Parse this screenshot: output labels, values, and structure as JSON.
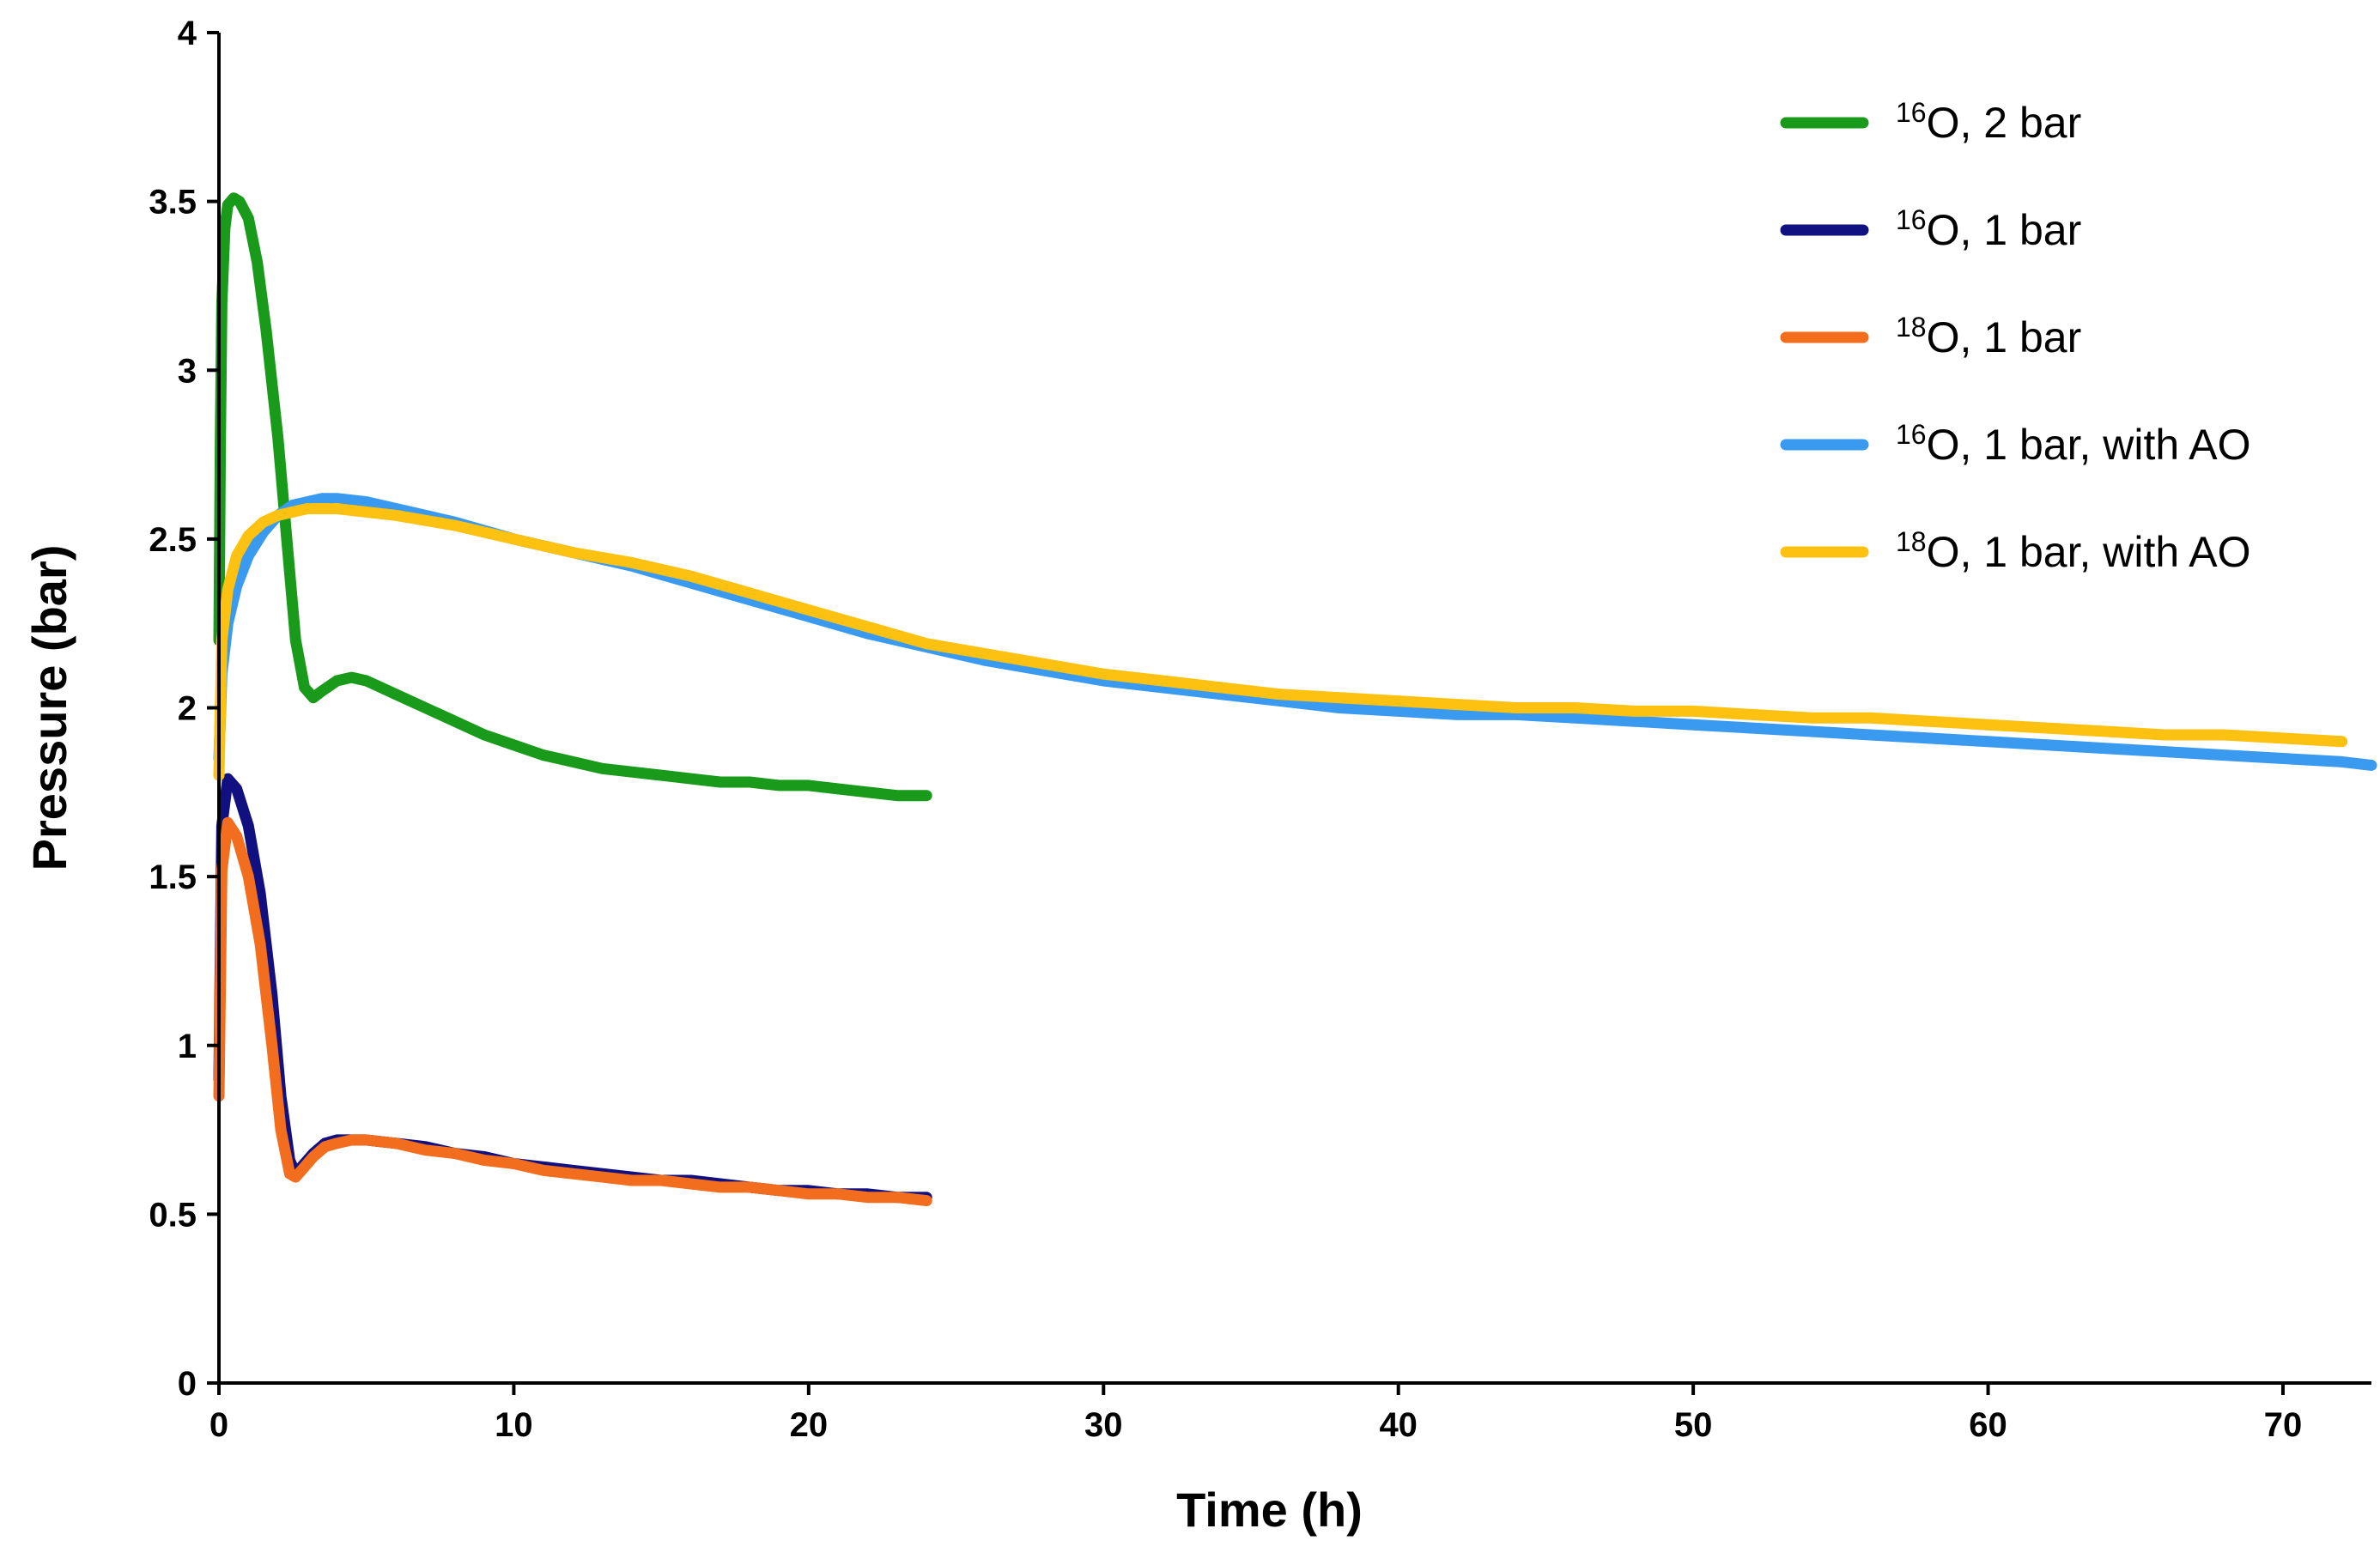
{
  "chart_data": {
    "type": "line",
    "xlabel": "Time (h)",
    "ylabel": "Pressure (bar)",
    "xlim": [
      0,
      73
    ],
    "ylim": [
      0,
      4
    ],
    "xticks": [
      0,
      10,
      20,
      30,
      40,
      50,
      60,
      70
    ],
    "yticks": [
      0,
      0.5,
      1,
      1.5,
      2,
      2.5,
      3,
      3.5,
      4
    ],
    "ytick_labels": [
      "0",
      "0.5",
      "1",
      "1.5",
      "2",
      "2.5",
      "3",
      "3.5",
      "4"
    ],
    "grid": false,
    "legend_position": "top-right",
    "series": [
      {
        "name_sup": "16",
        "name_rest": "O, 2 bar",
        "color": "#1a9a1a",
        "x": [
          0,
          0.05,
          0.1,
          0.2,
          0.3,
          0.5,
          0.7,
          1.0,
          1.3,
          1.6,
          2.0,
          2.3,
          2.6,
          2.9,
          3.2,
          3.5,
          4.0,
          4.5,
          5.0,
          5.5,
          6.0,
          7.0,
          8.0,
          9.0,
          10.0,
          11.0,
          12.0,
          13.0,
          14.0,
          15.0,
          16.0,
          17.0,
          18.0,
          19.0,
          20.0,
          21.0,
          22.0,
          23.0,
          24.0
        ],
        "y": [
          2.2,
          2.8,
          3.2,
          3.42,
          3.49,
          3.51,
          3.5,
          3.45,
          3.32,
          3.12,
          2.8,
          2.5,
          2.2,
          2.06,
          2.03,
          2.05,
          2.08,
          2.09,
          2.08,
          2.06,
          2.04,
          2.0,
          1.96,
          1.92,
          1.89,
          1.86,
          1.84,
          1.82,
          1.81,
          1.8,
          1.79,
          1.78,
          1.78,
          1.77,
          1.77,
          1.76,
          1.75,
          1.74,
          1.74
        ]
      },
      {
        "name_sup": "16",
        "name_rest": "O, 1 bar",
        "color": "#101080",
        "x": [
          0,
          0.1,
          0.3,
          0.6,
          1.0,
          1.4,
          1.8,
          2.1,
          2.4,
          2.6,
          2.8,
          3.2,
          3.6,
          4.0,
          4.5,
          5.0,
          6.0,
          7.0,
          8.0,
          9.0,
          10.0,
          11.0,
          12.0,
          13.0,
          14.0,
          15.0,
          16.0,
          17.0,
          18.0,
          19.0,
          20.0,
          21.0,
          22.0,
          23.0,
          24.0
        ],
        "y": [
          0.9,
          1.65,
          1.79,
          1.76,
          1.65,
          1.45,
          1.15,
          0.85,
          0.66,
          0.62,
          0.64,
          0.68,
          0.71,
          0.72,
          0.72,
          0.72,
          0.71,
          0.7,
          0.68,
          0.67,
          0.65,
          0.64,
          0.63,
          0.62,
          0.61,
          0.6,
          0.6,
          0.59,
          0.58,
          0.57,
          0.57,
          0.56,
          0.56,
          0.55,
          0.55
        ]
      },
      {
        "name_sup": "18",
        "name_rest": "O, 1 bar",
        "color": "#f26d1e",
        "x": [
          0,
          0.1,
          0.3,
          0.6,
          1.0,
          1.4,
          1.8,
          2.1,
          2.4,
          2.6,
          2.8,
          3.2,
          3.6,
          4.0,
          4.5,
          5.0,
          6.0,
          7.0,
          8.0,
          9.0,
          10.0,
          11.0,
          12.0,
          13.0,
          14.0,
          15.0,
          16.0,
          17.0,
          18.0,
          19.0,
          20.0,
          21.0,
          22.0,
          23.0,
          24.0
        ],
        "y": [
          0.85,
          1.52,
          1.66,
          1.62,
          1.5,
          1.3,
          1.0,
          0.75,
          0.62,
          0.61,
          0.63,
          0.67,
          0.7,
          0.71,
          0.72,
          0.72,
          0.71,
          0.69,
          0.68,
          0.66,
          0.65,
          0.63,
          0.62,
          0.61,
          0.6,
          0.6,
          0.59,
          0.58,
          0.58,
          0.57,
          0.56,
          0.56,
          0.55,
          0.55,
          0.54
        ]
      },
      {
        "name_sup": "16",
        "name_rest": "O, 1 bar, with AO",
        "color": "#3a9af0",
        "x": [
          0,
          0.1,
          0.3,
          0.6,
          1.0,
          1.5,
          2.0,
          2.5,
          3.0,
          3.5,
          4.0,
          5.0,
          6.0,
          8.0,
          10.0,
          12.0,
          14.0,
          16.0,
          18.0,
          20.0,
          22.0,
          24.0,
          26.0,
          28.0,
          30.0,
          32.0,
          34.0,
          36.0,
          38.0,
          40.0,
          42.0,
          44.0,
          46.0,
          48.0,
          50.0,
          52.0,
          54.0,
          56.0,
          58.0,
          60.0,
          62.0,
          64.0,
          66.0,
          68.0,
          70.0,
          72.0,
          73.0
        ],
        "y": [
          1.85,
          2.1,
          2.25,
          2.36,
          2.45,
          2.52,
          2.57,
          2.6,
          2.61,
          2.62,
          2.62,
          2.61,
          2.59,
          2.55,
          2.5,
          2.46,
          2.42,
          2.37,
          2.32,
          2.27,
          2.22,
          2.18,
          2.14,
          2.11,
          2.08,
          2.06,
          2.04,
          2.02,
          2.0,
          1.99,
          1.98,
          1.98,
          1.97,
          1.96,
          1.95,
          1.94,
          1.93,
          1.92,
          1.91,
          1.9,
          1.89,
          1.88,
          1.87,
          1.86,
          1.85,
          1.84,
          1.83
        ]
      },
      {
        "name_sup": "18",
        "name_rest": "O, 1 bar, with AO",
        "color": "#fcc111",
        "x": [
          0,
          0.1,
          0.3,
          0.6,
          1.0,
          1.5,
          2.0,
          2.5,
          3.0,
          4.0,
          5.0,
          6.0,
          8.0,
          10.0,
          12.0,
          14.0,
          16.0,
          18.0,
          20.0,
          22.0,
          24.0,
          26.0,
          28.0,
          30.0,
          32.0,
          34.0,
          36.0,
          38.0,
          40.0,
          42.0,
          44.0,
          46.0,
          48.0,
          50.0,
          52.0,
          54.0,
          56.0,
          58.0,
          60.0,
          62.0,
          64.0,
          66.0,
          68.0,
          70.0,
          72.0
        ],
        "y": [
          1.8,
          2.2,
          2.35,
          2.45,
          2.51,
          2.55,
          2.57,
          2.58,
          2.59,
          2.59,
          2.58,
          2.57,
          2.54,
          2.5,
          2.46,
          2.43,
          2.39,
          2.34,
          2.29,
          2.24,
          2.19,
          2.16,
          2.13,
          2.1,
          2.08,
          2.06,
          2.04,
          2.03,
          2.02,
          2.01,
          2.0,
          2.0,
          1.99,
          1.99,
          1.98,
          1.97,
          1.97,
          1.96,
          1.95,
          1.94,
          1.93,
          1.92,
          1.92,
          1.91,
          1.9
        ]
      }
    ]
  }
}
